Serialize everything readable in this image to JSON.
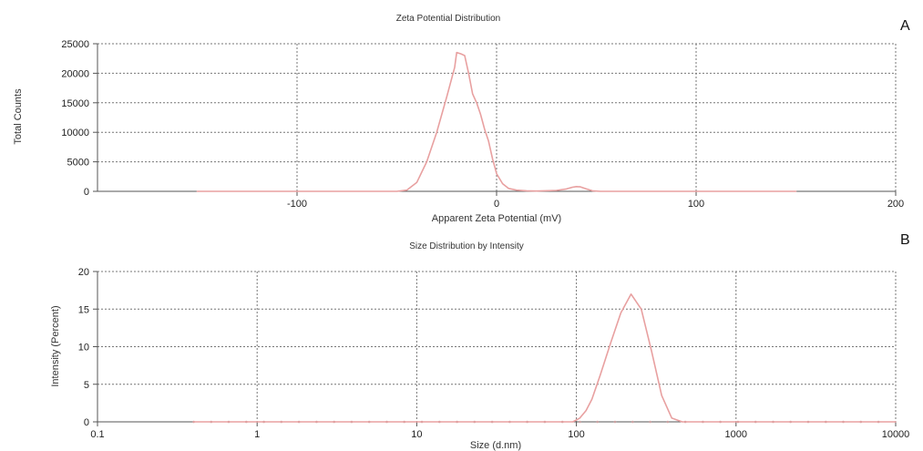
{
  "chart_data": [
    {
      "type": "line",
      "panel_letter": "A",
      "title": "Zeta Potential Distribution",
      "xlabel": "Apparent Zeta Potential (mV)",
      "ylabel": "Total Counts",
      "xlim": [
        -200,
        200
      ],
      "ylim": [
        0,
        25000
      ],
      "x_ticks": [
        -100,
        0,
        100,
        200
      ],
      "y_ticks": [
        0,
        5000,
        10000,
        15000,
        20000,
        25000
      ],
      "x_grid": [
        -100,
        0,
        100
      ],
      "y_grid": [
        5000,
        10000,
        15000,
        20000,
        25000
      ],
      "grid": true,
      "line_color": "#e8a0a0",
      "series": [
        {
          "x": [
            -150,
            -100,
            -60,
            -50,
            -45,
            -40,
            -35,
            -30,
            -25,
            -21,
            -20,
            -18,
            -16,
            -14,
            -12,
            -10,
            -8,
            -6,
            -4,
            -2,
            0,
            3,
            6,
            10,
            15,
            20,
            30,
            35,
            38,
            40,
            42,
            45,
            48,
            52,
            60,
            80,
            100,
            150
          ],
          "y": [
            0,
            0,
            0,
            0,
            200,
            1500,
            5000,
            10000,
            16000,
            21000,
            23500,
            23300,
            23000,
            20000,
            16500,
            15000,
            13000,
            10500,
            8500,
            5500,
            3000,
            1300,
            500,
            200,
            100,
            50,
            150,
            400,
            700,
            800,
            750,
            400,
            100,
            0,
            0,
            0,
            0,
            0
          ]
        }
      ]
    },
    {
      "type": "line",
      "panel_letter": "B",
      "title": "Size Distribution by Intensity",
      "xlabel": "Size (d.nm)",
      "ylabel": "Intensity (Percent)",
      "xscale": "log",
      "xlim": [
        0.1,
        10000
      ],
      "ylim": [
        0,
        20
      ],
      "x_ticks": [
        0.1,
        1,
        10,
        100,
        1000,
        10000
      ],
      "x_tick_labels": [
        "0.1",
        "1",
        "10",
        "100",
        "1000",
        "10000"
      ],
      "y_ticks": [
        0,
        5,
        10,
        15,
        20
      ],
      "x_grid": [
        1,
        10,
        100,
        1000
      ],
      "y_grid": [
        5,
        10,
        15,
        20
      ],
      "grid": true,
      "line_color": "#e8a0a0",
      "marker_color": "#c9a0a0",
      "series": [
        {
          "x": [
            0.4,
            1,
            10,
            50,
            95,
            105,
            115,
            125,
            141,
            164,
            190,
            220,
            255,
            295,
            342,
            396,
            460,
            1000,
            10000
          ],
          "y": [
            0,
            0,
            0,
            0,
            0,
            0.5,
            1.5,
            3.0,
            6.2,
            10.5,
            14.5,
            17.0,
            15.0,
            9.5,
            3.5,
            0.5,
            0,
            0,
            0
          ]
        }
      ]
    }
  ]
}
